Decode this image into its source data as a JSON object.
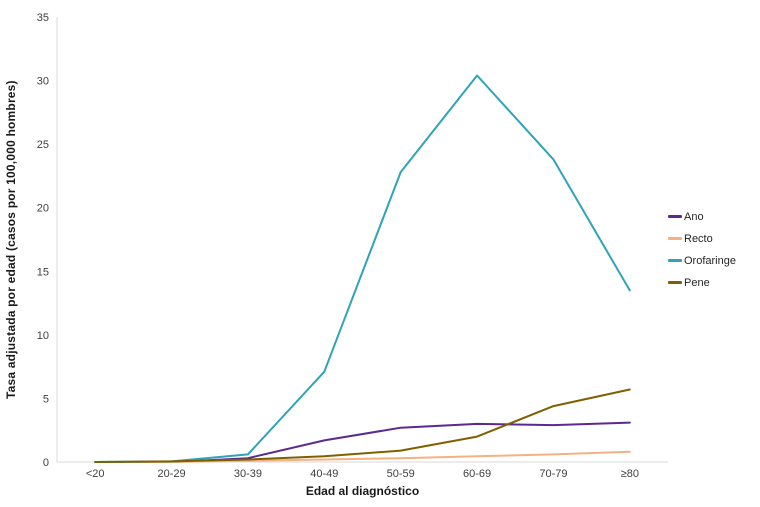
{
  "chart_data": {
    "type": "line",
    "title": "",
    "xlabel": "Edad al diagnóstico",
    "ylabel": "Tasa adjustada por edad (casos por 100,000 hombres)",
    "categories": [
      "<20",
      "20-29",
      "30-39",
      "40-49",
      "50-59",
      "60-69",
      "70-79",
      "≥80"
    ],
    "series": [
      {
        "name": "Ano",
        "color": "#5B2A91",
        "values": [
          0,
          0,
          0.3,
          1.7,
          2.7,
          3.0,
          2.9,
          3.1
        ]
      },
      {
        "name": "Recto",
        "color": "#F4B183",
        "values": [
          0,
          0,
          0.1,
          0.2,
          0.3,
          0.45,
          0.6,
          0.8
        ]
      },
      {
        "name": "Orofaringe",
        "color": "#2FA3B8",
        "values": [
          0,
          0.05,
          0.6,
          7.1,
          22.8,
          30.4,
          23.8,
          13.5
        ]
      },
      {
        "name": "Pene",
        "color": "#7F6000",
        "values": [
          0,
          0.05,
          0.2,
          0.45,
          0.9,
          2.0,
          4.4,
          5.7
        ]
      }
    ],
    "ylim": [
      0,
      35
    ],
    "ytick_step": 5,
    "grid": false,
    "legend_position": "right",
    "axis_line_color": "#D9D9D9",
    "tick_label_color": "#404040",
    "axis_title_color": "#1A1A1A",
    "background": "#FFFFFF"
  }
}
